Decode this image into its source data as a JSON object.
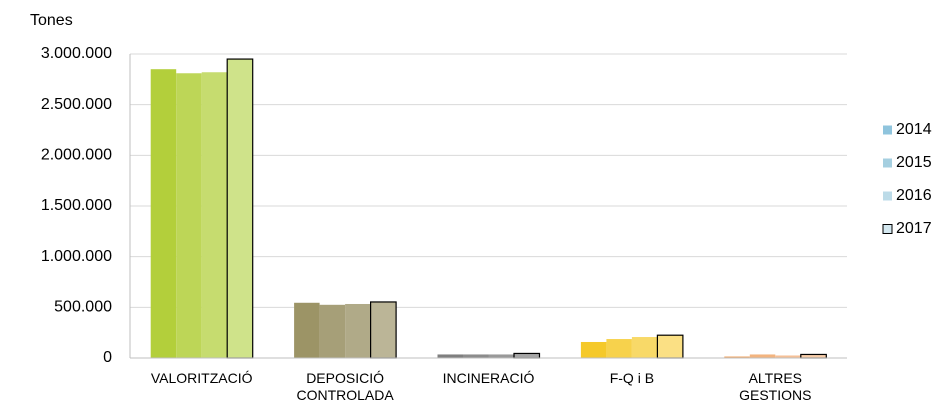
{
  "chart_data": {
    "type": "bar",
    "y_axis_label": "Tones",
    "categories": [
      "VALORITZACIÓ",
      "DEPOSICIÓ\nCONTROLADA",
      "INCINERACIÓ",
      "F-Q i B",
      "ALTRES\nGESTIONS"
    ],
    "series": [
      {
        "name": "2014",
        "color": "#8fc4dd",
        "colors": [
          "#b3cf3b",
          "#9c9466",
          "#7f7f7f",
          "#f5c92a",
          "#f0a869"
        ],
        "values": [
          2850000,
          545000,
          35000,
          158000,
          15000
        ]
      },
      {
        "name": "2015",
        "color": "#a5cfe0",
        "colors": [
          "#bdd657",
          "#a69f78",
          "#8c8c8c",
          "#f7d24c",
          "#f3b47f"
        ],
        "values": [
          2810000,
          525000,
          35000,
          187000,
          35000
        ]
      },
      {
        "name": "2016",
        "color": "#bcdbe8",
        "colors": [
          "#c6dc6f",
          "#b0aa88",
          "#999999",
          "#f8d968",
          "#f5c097"
        ],
        "values": [
          2820000,
          533000,
          35000,
          207000,
          25000
        ]
      },
      {
        "name": "2017",
        "color": "#d4e8f0",
        "edgecolor": "#000000",
        "colors": [
          "#cfe38a",
          "#bbb597",
          "#a6a6a6",
          "#fbe084",
          "#f8cda9"
        ],
        "values": [
          2950000,
          553000,
          45000,
          225000,
          35000
        ]
      }
    ],
    "ylim": [
      0,
      3000000
    ],
    "yticks": [
      0,
      {
        "value": 500000,
        "label": "500.000"
      },
      {
        "value": 1000000,
        "label": "1.000.000"
      },
      {
        "value": 1500000,
        "label": "1.500.000"
      },
      {
        "value": 2000000,
        "label": "2.000.000"
      },
      {
        "value": 2500000,
        "label": "2.500.000"
      },
      {
        "value": 3000000,
        "label": "3.000.000"
      }
    ],
    "grid": true,
    "legend": "right"
  }
}
